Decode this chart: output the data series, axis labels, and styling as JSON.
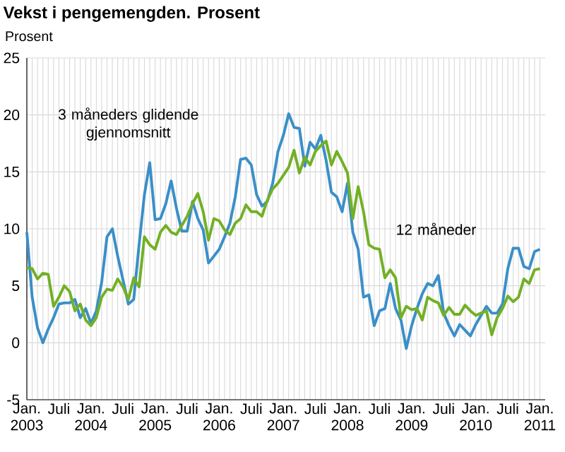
{
  "chart_data": {
    "type": "line",
    "title": "Vekst i pengemengden. Prosent",
    "ylabel": "Prosent",
    "x": [
      "2003-01",
      "2003-02",
      "2003-03",
      "2003-04",
      "2003-05",
      "2003-06",
      "2003-07",
      "2003-08",
      "2003-09",
      "2003-10",
      "2003-11",
      "2003-12",
      "2004-01",
      "2004-02",
      "2004-03",
      "2004-04",
      "2004-05",
      "2004-06",
      "2004-07",
      "2004-08",
      "2004-09",
      "2004-10",
      "2004-11",
      "2004-12",
      "2005-01",
      "2005-02",
      "2005-03",
      "2005-04",
      "2005-05",
      "2005-06",
      "2005-07",
      "2005-08",
      "2005-09",
      "2005-10",
      "2005-11",
      "2005-12",
      "2006-01",
      "2006-02",
      "2006-03",
      "2006-04",
      "2006-05",
      "2006-06",
      "2006-07",
      "2006-08",
      "2006-09",
      "2006-10",
      "2006-11",
      "2006-12",
      "2007-01",
      "2007-02",
      "2007-03",
      "2007-04",
      "2007-05",
      "2007-06",
      "2007-07",
      "2007-08",
      "2007-09",
      "2007-10",
      "2007-11",
      "2007-12",
      "2008-01",
      "2008-02",
      "2008-03",
      "2008-04",
      "2008-05",
      "2008-06",
      "2008-07",
      "2008-08",
      "2008-09",
      "2008-10",
      "2008-11",
      "2008-12",
      "2009-01",
      "2009-02",
      "2009-03",
      "2009-04",
      "2009-05",
      "2009-06",
      "2009-07",
      "2009-08",
      "2009-09",
      "2009-10",
      "2009-11",
      "2009-12",
      "2010-01",
      "2010-02",
      "2010-03",
      "2010-04",
      "2010-05",
      "2010-06",
      "2010-07",
      "2010-08",
      "2010-09",
      "2010-10",
      "2010-11",
      "2010-12",
      "2011-01"
    ],
    "series": [
      {
        "name": "3 måneders glidende gjennomsnitt",
        "color": "#3a8fc8",
        "values": [
          9.7,
          4.0,
          1.3,
          0.0,
          1.2,
          2.2,
          3.4,
          3.5,
          3.5,
          3.8,
          2.2,
          3.0,
          1.7,
          2.8,
          5.3,
          9.3,
          10.0,
          7.6,
          5.5,
          3.4,
          3.8,
          8.6,
          13.0,
          15.8,
          10.8,
          10.9,
          12.2,
          14.2,
          11.8,
          9.8,
          9.8,
          12.4,
          10.9,
          9.9,
          7.0,
          7.6,
          8.2,
          9.3,
          10.5,
          12.8,
          16.1,
          16.2,
          15.6,
          13.0,
          12.0,
          12.4,
          14.0,
          16.8,
          18.2,
          20.1,
          18.9,
          18.8,
          15.5,
          17.6,
          17.0,
          18.2,
          16.0,
          13.2,
          12.8,
          11.5,
          14.0,
          9.7,
          8.2,
          4.0,
          4.2,
          1.5,
          2.8,
          3.0,
          5.2,
          3.0,
          2.0,
          -0.5,
          1.5,
          3.0,
          4.3,
          5.2,
          5.0,
          5.9,
          2.6,
          1.5,
          0.6,
          1.6,
          1.1,
          0.6,
          1.6,
          2.4,
          3.2,
          2.6,
          2.6,
          3.4,
          6.5,
          8.3,
          8.3,
          6.7,
          6.5,
          8.0,
          8.2
        ]
      },
      {
        "name": "12 måneder",
        "color": "#72b026",
        "values": [
          6.6,
          6.5,
          5.6,
          6.1,
          6.0,
          3.2,
          4.0,
          5.0,
          4.5,
          2.8,
          3.4,
          2.0,
          1.5,
          2.2,
          4.0,
          4.7,
          4.6,
          5.6,
          4.9,
          3.8,
          5.7,
          4.9,
          9.3,
          8.6,
          8.2,
          9.7,
          10.3,
          9.7,
          9.5,
          10.3,
          11.1,
          12.2,
          13.1,
          11.5,
          9.0,
          10.9,
          10.7,
          9.9,
          9.5,
          10.5,
          10.9,
          12.1,
          11.5,
          11.5,
          11.1,
          12.5,
          13.5,
          14.0,
          14.7,
          15.4,
          16.9,
          14.9,
          16.3,
          15.6,
          16.8,
          17.3,
          17.7,
          15.6,
          16.8,
          15.9,
          14.9,
          10.9,
          13.7,
          11.5,
          8.6,
          8.3,
          8.2,
          5.7,
          6.4,
          5.7,
          2.2,
          3.2,
          2.9,
          3.0,
          2.0,
          4.0,
          3.7,
          3.5,
          2.4,
          3.1,
          2.5,
          2.5,
          3.3,
          2.8,
          2.4,
          2.6,
          2.8,
          0.7,
          2.2,
          3.0,
          4.1,
          3.6,
          4.0,
          5.6,
          5.2,
          6.4,
          6.5
        ]
      }
    ],
    "xlim": [
      "2003-01",
      "2011-02"
    ],
    "xticks": [
      {
        "value": "2003-01",
        "label": "Jan. 2003"
      },
      {
        "value": "2003-02",
        "label": null
      },
      {
        "value": "2003-03",
        "label": null
      },
      {
        "value": "2003-04",
        "label": null
      },
      {
        "value": "2003-05",
        "label": null
      },
      {
        "value": "2003-06",
        "label": null
      },
      {
        "value": "2003-07",
        "label": "Juli"
      },
      {
        "value": "2003-08",
        "label": null
      },
      {
        "value": "2003-09",
        "label": null
      },
      {
        "value": "2003-10",
        "label": null
      },
      {
        "value": "2003-11",
        "label": null
      },
      {
        "value": "2003-12",
        "label": null
      },
      {
        "value": "2004-01",
        "label": "Jan. 2004"
      },
      {
        "value": "2004-02",
        "label": null
      },
      {
        "value": "2004-03",
        "label": null
      },
      {
        "value": "2004-04",
        "label": null
      },
      {
        "value": "2004-05",
        "label": null
      },
      {
        "value": "2004-06",
        "label": null
      },
      {
        "value": "2004-07",
        "label": "Juli"
      },
      {
        "value": "2004-08",
        "label": null
      },
      {
        "value": "2004-09",
        "label": null
      },
      {
        "value": "2004-10",
        "label": null
      },
      {
        "value": "2004-11",
        "label": null
      },
      {
        "value": "2004-12",
        "label": null
      },
      {
        "value": "2005-01",
        "label": "Jan. 2005"
      },
      {
        "value": "2005-02",
        "label": null
      },
      {
        "value": "2005-03",
        "label": null
      },
      {
        "value": "2005-04",
        "label": null
      },
      {
        "value": "2005-05",
        "label": null
      },
      {
        "value": "2005-06",
        "label": null
      },
      {
        "value": "2005-07",
        "label": "Juli"
      },
      {
        "value": "2005-08",
        "label": null
      },
      {
        "value": "2005-09",
        "label": null
      },
      {
        "value": "2005-10",
        "label": null
      },
      {
        "value": "2005-11",
        "label": null
      },
      {
        "value": "2005-12",
        "label": null
      },
      {
        "value": "2006-01",
        "label": "Jan. 2006"
      },
      {
        "value": "2006-02",
        "label": null
      },
      {
        "value": "2006-03",
        "label": null
      },
      {
        "value": "2006-04",
        "label": null
      },
      {
        "value": "2006-05",
        "label": null
      },
      {
        "value": "2006-06",
        "label": null
      },
      {
        "value": "2006-07",
        "label": "Juli"
      },
      {
        "value": "2006-08",
        "label": null
      },
      {
        "value": "2006-09",
        "label": null
      },
      {
        "value": "2006-10",
        "label": null
      },
      {
        "value": "2006-11",
        "label": null
      },
      {
        "value": "2006-12",
        "label": null
      },
      {
        "value": "2007-01",
        "label": "Jan. 2007"
      },
      {
        "value": "2007-02",
        "label": null
      },
      {
        "value": "2007-03",
        "label": null
      },
      {
        "value": "2007-04",
        "label": null
      },
      {
        "value": "2007-05",
        "label": null
      },
      {
        "value": "2007-06",
        "label": null
      },
      {
        "value": "2007-07",
        "label": "Juli"
      },
      {
        "value": "2007-08",
        "label": null
      },
      {
        "value": "2007-09",
        "label": null
      },
      {
        "value": "2007-10",
        "label": null
      },
      {
        "value": "2007-11",
        "label": null
      },
      {
        "value": "2007-12",
        "label": null
      },
      {
        "value": "2008-01",
        "label": "Jan. 2008"
      },
      {
        "value": "2008-02",
        "label": null
      },
      {
        "value": "2008-03",
        "label": null
      },
      {
        "value": "2008-04",
        "label": null
      },
      {
        "value": "2008-05",
        "label": null
      },
      {
        "value": "2008-06",
        "label": null
      },
      {
        "value": "2008-07",
        "label": "Juli"
      },
      {
        "value": "2008-08",
        "label": null
      },
      {
        "value": "2008-09",
        "label": null
      },
      {
        "value": "2008-10",
        "label": null
      },
      {
        "value": "2008-11",
        "label": null
      },
      {
        "value": "2008-12",
        "label": null
      },
      {
        "value": "2009-01",
        "label": "Jan. 2009"
      },
      {
        "value": "2009-02",
        "label": null
      },
      {
        "value": "2009-03",
        "label": null
      },
      {
        "value": "2009-04",
        "label": null
      },
      {
        "value": "2009-05",
        "label": null
      },
      {
        "value": "2009-06",
        "label": null
      },
      {
        "value": "2009-07",
        "label": "Juli"
      },
      {
        "value": "2009-08",
        "label": null
      },
      {
        "value": "2009-09",
        "label": null
      },
      {
        "value": "2009-10",
        "label": null
      },
      {
        "value": "2009-11",
        "label": null
      },
      {
        "value": "2009-12",
        "label": null
      },
      {
        "value": "2010-01",
        "label": "Jan. 2010"
      },
      {
        "value": "2010-02",
        "label": null
      },
      {
        "value": "2010-03",
        "label": null
      },
      {
        "value": "2010-04",
        "label": null
      },
      {
        "value": "2010-05",
        "label": null
      },
      {
        "value": "2010-06",
        "label": null
      },
      {
        "value": "2010-07",
        "label": "Juli"
      },
      {
        "value": "2010-08",
        "label": null
      },
      {
        "value": "2010-09",
        "label": null
      },
      {
        "value": "2010-10",
        "label": null
      },
      {
        "value": "2010-11",
        "label": null
      },
      {
        "value": "2010-12",
        "label": null
      },
      {
        "value": "2011-01",
        "label": "Jan. 2011"
      }
    ],
    "ylim": [
      -5,
      25
    ],
    "yticks": [
      -5,
      0,
      5,
      10,
      15,
      20,
      25
    ],
    "grid": true,
    "marker": "none",
    "line_style": "solid"
  }
}
